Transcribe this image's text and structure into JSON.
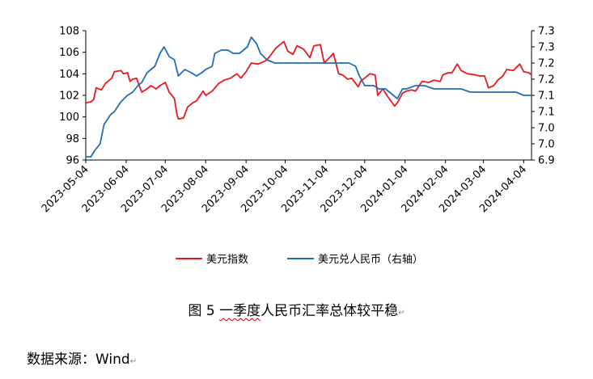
{
  "chart_data": {
    "type": "line",
    "x_tick_labels": [
      "2023-05-04",
      "2023-06-04",
      "2023-07-04",
      "2023-08-04",
      "2023-09-04",
      "2023-10-04",
      "2023-11-04",
      "2023-12-04",
      "2024-01-04",
      "2024-02-04",
      "2024-03-04",
      "2024-04-04"
    ],
    "x_range": [
      "2023-05-04",
      "2024-04-10"
    ],
    "y_left": {
      "ticks": [
        96,
        98,
        100,
        102,
        104,
        106,
        108
      ],
      "range": [
        96,
        108
      ]
    },
    "y_right": {
      "ticks": [
        "6.9",
        "7.0",
        "7.0",
        "7.1",
        "7.1",
        "7.2",
        "7.2",
        "7.3",
        "7.3"
      ],
      "range": [
        6.9,
        7.3
      ]
    },
    "grid": false,
    "legend_position": "bottom",
    "series": [
      {
        "name": "美元指数",
        "axis": "left",
        "color": "#e8191f",
        "points": [
          [
            "2023-05-04",
            101.3
          ],
          [
            "2023-05-08",
            101.4
          ],
          [
            "2023-05-10",
            101.6
          ],
          [
            "2023-05-12",
            102.7
          ],
          [
            "2023-05-16",
            102.5
          ],
          [
            "2023-05-19",
            103.1
          ],
          [
            "2023-05-24",
            103.6
          ],
          [
            "2023-05-26",
            104.2
          ],
          [
            "2023-05-31",
            104.3
          ],
          [
            "2023-06-02",
            104.0
          ],
          [
            "2023-06-05",
            104.1
          ],
          [
            "2023-06-07",
            103.3
          ],
          [
            "2023-06-09",
            103.5
          ],
          [
            "2023-06-12",
            103.6
          ],
          [
            "2023-06-14",
            102.9
          ],
          [
            "2023-06-16",
            102.3
          ],
          [
            "2023-06-20",
            102.6
          ],
          [
            "2023-06-23",
            102.9
          ],
          [
            "2023-06-27",
            102.6
          ],
          [
            "2023-06-30",
            102.9
          ],
          [
            "2023-07-04",
            103.2
          ],
          [
            "2023-07-07",
            102.3
          ],
          [
            "2023-07-11",
            101.7
          ],
          [
            "2023-07-13",
            100.2
          ],
          [
            "2023-07-14",
            99.8
          ],
          [
            "2023-07-18",
            99.9
          ],
          [
            "2023-07-21",
            100.9
          ],
          [
            "2023-07-25",
            101.3
          ],
          [
            "2023-07-28",
            101.5
          ],
          [
            "2023-08-02",
            102.4
          ],
          [
            "2023-08-04",
            102.0
          ],
          [
            "2023-08-09",
            102.4
          ],
          [
            "2023-08-14",
            103.1
          ],
          [
            "2023-08-18",
            103.4
          ],
          [
            "2023-08-23",
            103.6
          ],
          [
            "2023-08-28",
            104.0
          ],
          [
            "2023-08-31",
            103.6
          ],
          [
            "2023-09-04",
            104.2
          ],
          [
            "2023-09-08",
            105.0
          ],
          [
            "2023-09-13",
            104.9
          ],
          [
            "2023-09-19",
            105.2
          ],
          [
            "2023-09-22",
            105.6
          ],
          [
            "2023-09-27",
            106.4
          ],
          [
            "2023-10-03",
            107.0
          ],
          [
            "2023-10-06",
            106.1
          ],
          [
            "2023-10-10",
            105.8
          ],
          [
            "2023-10-13",
            106.6
          ],
          [
            "2023-10-18",
            106.3
          ],
          [
            "2023-10-23",
            105.5
          ],
          [
            "2023-10-26",
            106.6
          ],
          [
            "2023-10-31",
            106.7
          ],
          [
            "2023-11-03",
            105.0
          ],
          [
            "2023-11-07",
            105.5
          ],
          [
            "2023-11-10",
            105.9
          ],
          [
            "2023-11-14",
            104.0
          ],
          [
            "2023-11-17",
            103.9
          ],
          [
            "2023-11-21",
            103.5
          ],
          [
            "2023-11-24",
            103.6
          ],
          [
            "2023-11-29",
            102.8
          ],
          [
            "2023-12-01",
            103.3
          ],
          [
            "2023-12-05",
            103.7
          ],
          [
            "2023-12-08",
            104.0
          ],
          [
            "2023-12-12",
            103.9
          ],
          [
            "2023-12-14",
            102.0
          ],
          [
            "2023-12-18",
            102.6
          ],
          [
            "2023-12-21",
            102.0
          ],
          [
            "2023-12-27",
            101.0
          ],
          [
            "2023-12-29",
            101.3
          ],
          [
            "2024-01-02",
            102.2
          ],
          [
            "2024-01-05",
            102.4
          ],
          [
            "2024-01-09",
            102.5
          ],
          [
            "2024-01-12",
            102.4
          ],
          [
            "2024-01-17",
            103.3
          ],
          [
            "2024-01-22",
            103.2
          ],
          [
            "2024-01-26",
            103.4
          ],
          [
            "2024-01-31",
            103.3
          ],
          [
            "2024-02-02",
            103.9
          ],
          [
            "2024-02-06",
            104.1
          ],
          [
            "2024-02-09",
            104.1
          ],
          [
            "2024-02-13",
            104.9
          ],
          [
            "2024-02-16",
            104.3
          ],
          [
            "2024-02-21",
            104.0
          ],
          [
            "2024-02-27",
            103.9
          ],
          [
            "2024-03-01",
            103.8
          ],
          [
            "2024-03-05",
            103.8
          ],
          [
            "2024-03-08",
            102.7
          ],
          [
            "2024-03-12",
            102.9
          ],
          [
            "2024-03-15",
            103.4
          ],
          [
            "2024-03-19",
            103.8
          ],
          [
            "2024-03-22",
            104.4
          ],
          [
            "2024-03-27",
            104.3
          ],
          [
            "2024-04-01",
            104.9
          ],
          [
            "2024-04-04",
            104.2
          ],
          [
            "2024-04-08",
            104.1
          ],
          [
            "2024-04-10",
            103.9
          ]
        ]
      },
      {
        "name": "美元兑人民币（右轴）",
        "axis": "right",
        "color": "#1f6fb5",
        "points": [
          [
            "2023-05-04",
            6.91
          ],
          [
            "2023-05-08",
            6.91
          ],
          [
            "2023-05-11",
            6.93
          ],
          [
            "2023-05-15",
            6.95
          ],
          [
            "2023-05-18",
            7.01
          ],
          [
            "2023-05-23",
            7.04
          ],
          [
            "2023-05-26",
            7.05
          ],
          [
            "2023-05-31",
            7.08
          ],
          [
            "2023-06-05",
            7.1
          ],
          [
            "2023-06-09",
            7.11
          ],
          [
            "2023-06-13",
            7.13
          ],
          [
            "2023-06-16",
            7.14
          ],
          [
            "2023-06-20",
            7.17
          ],
          [
            "2023-06-26",
            7.19
          ],
          [
            "2023-06-30",
            7.23
          ],
          [
            "2023-07-03",
            7.25
          ],
          [
            "2023-07-07",
            7.22
          ],
          [
            "2023-07-11",
            7.21
          ],
          [
            "2023-07-14",
            7.16
          ],
          [
            "2023-07-19",
            7.18
          ],
          [
            "2023-07-24",
            7.17
          ],
          [
            "2023-07-28",
            7.16
          ],
          [
            "2023-08-01",
            7.17
          ],
          [
            "2023-08-04",
            7.18
          ],
          [
            "2023-08-09",
            7.19
          ],
          [
            "2023-08-11",
            7.23
          ],
          [
            "2023-08-16",
            7.24
          ],
          [
            "2023-08-21",
            7.24
          ],
          [
            "2023-08-25",
            7.23
          ],
          [
            "2023-08-30",
            7.23
          ],
          [
            "2023-09-05",
            7.25
          ],
          [
            "2023-09-08",
            7.28
          ],
          [
            "2023-09-12",
            7.26
          ],
          [
            "2023-09-15",
            7.23
          ],
          [
            "2023-09-20",
            7.21
          ],
          [
            "2023-09-26",
            7.2
          ],
          [
            "2023-10-04",
            7.2
          ],
          [
            "2023-10-16",
            7.2
          ],
          [
            "2023-11-01",
            7.2
          ],
          [
            "2023-11-15",
            7.2
          ],
          [
            "2023-11-22",
            7.2
          ],
          [
            "2023-11-27",
            7.19
          ],
          [
            "2023-11-30",
            7.16
          ],
          [
            "2023-12-04",
            7.13
          ],
          [
            "2023-12-07",
            7.13
          ],
          [
            "2023-12-11",
            7.13
          ],
          [
            "2023-12-15",
            7.12
          ],
          [
            "2023-12-20",
            7.12
          ],
          [
            "2023-12-26",
            7.1
          ],
          [
            "2023-12-29",
            7.09
          ],
          [
            "2024-01-02",
            7.12
          ],
          [
            "2024-01-05",
            7.12
          ],
          [
            "2024-01-12",
            7.13
          ],
          [
            "2024-01-19",
            7.13
          ],
          [
            "2024-01-26",
            7.12
          ],
          [
            "2024-02-02",
            7.12
          ],
          [
            "2024-02-09",
            7.12
          ],
          [
            "2024-02-16",
            7.12
          ],
          [
            "2024-02-23",
            7.11
          ],
          [
            "2024-03-01",
            7.11
          ],
          [
            "2024-03-08",
            7.11
          ],
          [
            "2024-03-15",
            7.11
          ],
          [
            "2024-03-22",
            7.11
          ],
          [
            "2024-03-29",
            7.11
          ],
          [
            "2024-04-04",
            7.1
          ],
          [
            "2024-04-10",
            7.1
          ]
        ]
      }
    ]
  },
  "caption": {
    "prefix": "图 5 ",
    "emphasis": "一季度",
    "rest": "人民币汇率总体较平稳",
    "mark": "↵"
  },
  "source": {
    "text": "数据来源：Wind",
    "mark": "↵"
  }
}
